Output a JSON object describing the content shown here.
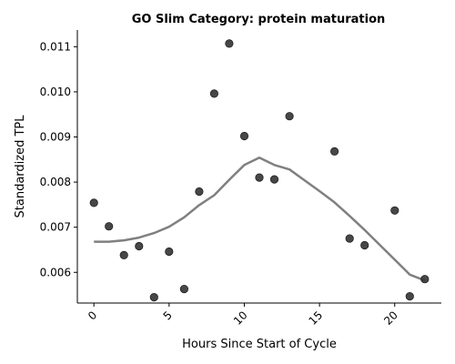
{
  "chart_data": {
    "type": "scatter",
    "title": "GO Slim Category: protein maturation",
    "xlabel": "Hours Since Start of Cycle",
    "ylabel": "Standardized TPL",
    "xlim": [
      -1.1,
      23.1
    ],
    "ylim": [
      0.00532,
      0.01137
    ],
    "x_ticks": [
      0,
      5,
      10,
      15,
      20
    ],
    "x_tick_labels": [
      "0",
      "5",
      "10",
      "15",
      "20"
    ],
    "y_ticks": [
      0.006,
      0.007,
      0.008,
      0.009,
      0.01,
      0.011
    ],
    "y_tick_labels": [
      "0.006",
      "0.007",
      "0.008",
      "0.009",
      "0.010",
      "0.011"
    ],
    "grid": false,
    "series": [
      {
        "type": "scatter",
        "color": "#333333",
        "points": [
          {
            "x": 0,
            "y": 0.00754
          },
          {
            "x": 1,
            "y": 0.00702
          },
          {
            "x": 2,
            "y": 0.00638
          },
          {
            "x": 3,
            "y": 0.00658
          },
          {
            "x": 4,
            "y": 0.00545
          },
          {
            "x": 5,
            "y": 0.00646
          },
          {
            "x": 6,
            "y": 0.00563
          },
          {
            "x": 7,
            "y": 0.00779
          },
          {
            "x": 8,
            "y": 0.00996
          },
          {
            "x": 9,
            "y": 0.01107
          },
          {
            "x": 10,
            "y": 0.00902
          },
          {
            "x": 11,
            "y": 0.0081
          },
          {
            "x": 12,
            "y": 0.00806
          },
          {
            "x": 13,
            "y": 0.00946
          },
          {
            "x": 16,
            "y": 0.00868
          },
          {
            "x": 17,
            "y": 0.00675
          },
          {
            "x": 18,
            "y": 0.0066
          },
          {
            "x": 20,
            "y": 0.00737
          },
          {
            "x": 21,
            "y": 0.00547
          },
          {
            "x": 22,
            "y": 0.00585
          }
        ]
      },
      {
        "type": "line",
        "color": "#808080",
        "points": [
          {
            "x": 0,
            "y": 0.00668
          },
          {
            "x": 1,
            "y": 0.00668
          },
          {
            "x": 2,
            "y": 0.00671
          },
          {
            "x": 3,
            "y": 0.00677
          },
          {
            "x": 4,
            "y": 0.00687
          },
          {
            "x": 5,
            "y": 0.00701
          },
          {
            "x": 6,
            "y": 0.00722
          },
          {
            "x": 7,
            "y": 0.00749
          },
          {
            "x": 8,
            "y": 0.00771
          },
          {
            "x": 9,
            "y": 0.00805
          },
          {
            "x": 10,
            "y": 0.00838
          },
          {
            "x": 11,
            "y": 0.00854
          },
          {
            "x": 12,
            "y": 0.00838
          },
          {
            "x": 13,
            "y": 0.00828
          },
          {
            "x": 14,
            "y": 0.00804
          },
          {
            "x": 15,
            "y": 0.0078
          },
          {
            "x": 16,
            "y": 0.00755
          },
          {
            "x": 17,
            "y": 0.00725
          },
          {
            "x": 18,
            "y": 0.00694
          },
          {
            "x": 19,
            "y": 0.00661
          },
          {
            "x": 20,
            "y": 0.00628
          },
          {
            "x": 21,
            "y": 0.00595
          },
          {
            "x": 22,
            "y": 0.00582
          }
        ]
      }
    ]
  }
}
